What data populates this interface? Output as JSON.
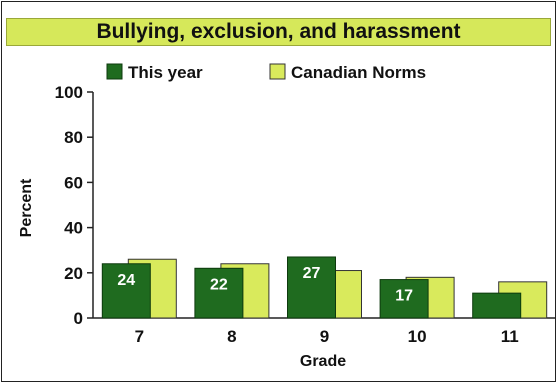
{
  "chart_data": {
    "type": "bar",
    "title": "Bullying, exclusion, and harassment",
    "xlabel": "Grade",
    "ylabel": "Percent",
    "categories": [
      "7",
      "8",
      "9",
      "10",
      "11"
    ],
    "ylim": [
      0,
      100
    ],
    "yticks": [
      0,
      20,
      40,
      60,
      80,
      100
    ],
    "grid": false,
    "legend_position": "top",
    "series": [
      {
        "name": "This year",
        "color": "#1f6b1f",
        "values": [
          24,
          22,
          27,
          17,
          11
        ],
        "labels": [
          "24",
          "22",
          "27",
          "17",
          ""
        ]
      },
      {
        "name": "Canadian Norms",
        "color": "#d9ea5c",
        "values": [
          26,
          24,
          21,
          18,
          16
        ]
      }
    ]
  }
}
